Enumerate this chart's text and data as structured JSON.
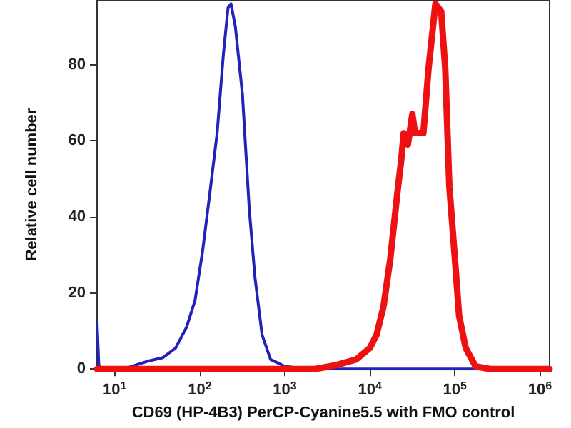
{
  "chart_data": {
    "type": "line",
    "xlabel": "CD69 (HP-4B3) PerCP-Cyanine5.5 with FMO control",
    "ylabel": "Relative cell number",
    "log": "x",
    "grid": false,
    "marker": "none",
    "line_style": "solid",
    "xlim": [
      6.2,
      1300000
    ],
    "xticks": [
      {
        "value": 10,
        "label": "10$^{1}$"
      },
      {
        "value": 100,
        "label": "10$^{2}$"
      },
      {
        "value": 1000,
        "label": "10$^{3}$"
      },
      {
        "value": 10000,
        "label": "10$^{4}$"
      },
      {
        "value": 100000,
        "label": "10$^{5}$"
      },
      {
        "value": 1000000,
        "label": "10$^{6}$"
      }
    ],
    "ylim": [
      0,
      97
    ],
    "yticks": [
      0,
      20,
      40,
      60,
      80
    ],
    "series": [
      {
        "color": "#2222bb",
        "x": [
          6.2,
          6.5,
          7,
          14,
          24,
          37,
          52,
          70,
          88,
          108,
          131,
          160,
          190,
          215,
          233,
          262,
          318,
          382,
          446,
          540,
          680,
          1000,
          1860,
          10000,
          100000,
          1300000
        ],
        "values": [
          12,
          1,
          0,
          0.3,
          2,
          3,
          5.5,
          11,
          18,
          31,
          46,
          62,
          83,
          95,
          96,
          90,
          72,
          42,
          24,
          9,
          2.5,
          0.7,
          0,
          0,
          0,
          0
        ]
      },
      {
        "color": "#ee1111",
        "x": [
          6.2,
          100,
          2270,
          3980,
          6900,
          10000,
          12000,
          14500,
          17400,
          21000,
          23400,
          25000,
          28000,
          31600,
          34000,
          36600,
          42600,
          49000,
          59000,
          69000,
          77000,
          86000,
          100000,
          112000,
          134000,
          175000,
          260000,
          1300000
        ],
        "values": [
          0,
          0,
          0,
          1,
          2.5,
          5.5,
          9,
          16.5,
          29,
          46,
          55,
          62,
          59,
          67,
          62,
          62,
          62,
          79,
          96,
          94,
          79,
          48,
          29,
          14,
          5.5,
          0.7,
          0,
          0
        ]
      }
    ]
  }
}
